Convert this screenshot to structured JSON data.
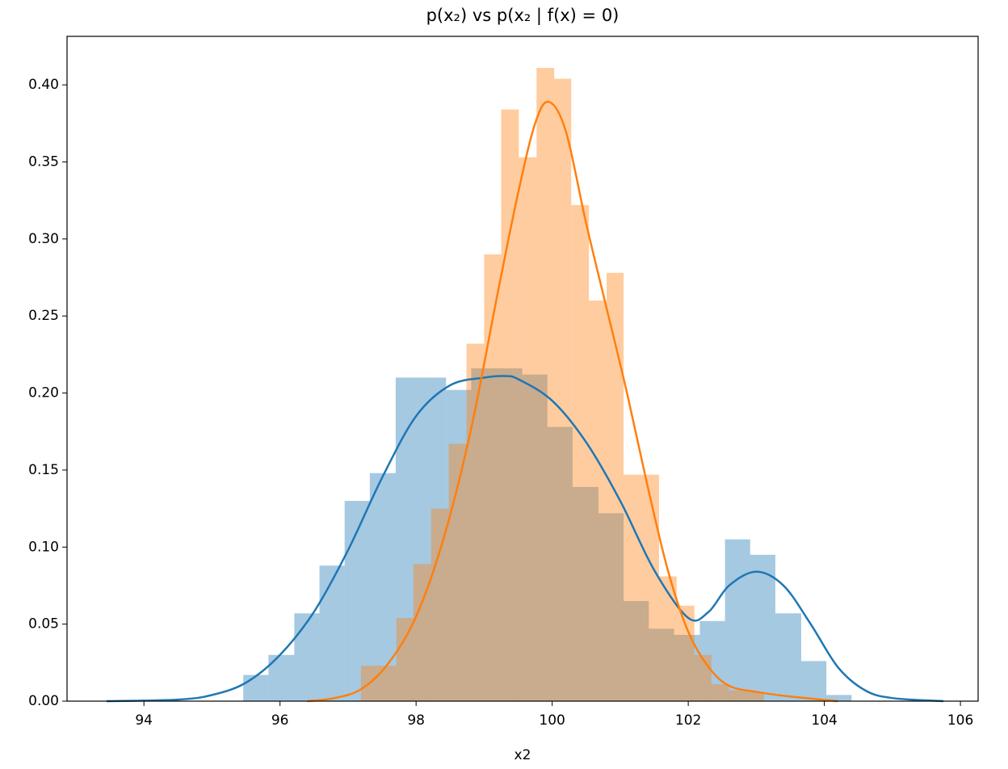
{
  "chart_data": {
    "type": "histogram",
    "title": "p(x₂) vs p(x₂ | f(x) = 0)",
    "x_label": "x2",
    "xlim": [
      92.87,
      106.26
    ],
    "ylim": [
      0,
      0.4315
    ],
    "xticks": [
      94,
      96,
      98,
      100,
      102,
      104,
      106
    ],
    "yticks": [
      {
        "value": 0,
        "label": "0.00"
      },
      {
        "value": 0.05,
        "label": "0.05"
      },
      {
        "value": 0.1,
        "label": "0.10"
      },
      {
        "value": 0.15,
        "label": "0.15"
      },
      {
        "value": 0.2,
        "label": "0.20"
      },
      {
        "value": 0.25,
        "label": "0.25"
      },
      {
        "value": 0.3,
        "label": "0.30"
      },
      {
        "value": 0.35,
        "label": "0.35"
      },
      {
        "value": 0.4,
        "label": "0.40"
      }
    ],
    "series": [
      {
        "color": "#1f77b4",
        "bins": [
          95.46,
          95.83,
          96.21,
          96.58,
          96.95,
          97.32,
          97.7,
          98.07,
          98.44,
          98.81,
          99.19,
          99.56,
          99.93,
          100.3,
          100.68,
          101.05,
          101.42,
          101.79,
          102.17,
          102.54,
          102.91,
          103.28,
          103.66,
          104.03,
          104.4
        ],
        "values": [
          0.017,
          0.03,
          0.057,
          0.088,
          0.13,
          0.148,
          0.21,
          0.21,
          0.202,
          0.216,
          0.216,
          0.212,
          0.178,
          0.139,
          0.122,
          0.065,
          0.047,
          0.043,
          0.052,
          0.105,
          0.095,
          0.057,
          0.026,
          0.004
        ],
        "kde": {
          "x": [
            93.45,
            94.5,
            95.0,
            95.5,
            96.0,
            96.5,
            97.0,
            97.5,
            98.0,
            98.5,
            99.0,
            99.3,
            99.5,
            100.0,
            100.5,
            101.0,
            101.5,
            102.0,
            102.3,
            102.6,
            103.0,
            103.4,
            103.8,
            104.2,
            104.6,
            105.0,
            105.75
          ],
          "y": [
            0.0,
            0.001,
            0.004,
            0.012,
            0.03,
            0.058,
            0.098,
            0.145,
            0.185,
            0.205,
            0.21,
            0.211,
            0.209,
            0.195,
            0.168,
            0.13,
            0.085,
            0.054,
            0.058,
            0.075,
            0.084,
            0.075,
            0.05,
            0.022,
            0.007,
            0.002,
            0.0
          ]
        }
      },
      {
        "color": "#ff7f0e",
        "bins": [
          97.19,
          97.45,
          97.71,
          97.96,
          98.22,
          98.48,
          98.74,
          99.0,
          99.25,
          99.51,
          99.77,
          100.03,
          100.28,
          100.54,
          100.8,
          101.05,
          101.31,
          101.57,
          101.83,
          102.09,
          102.34,
          102.6,
          102.86,
          103.11
        ],
        "values": [
          0.023,
          0.023,
          0.054,
          0.089,
          0.125,
          0.167,
          0.232,
          0.29,
          0.384,
          0.353,
          0.411,
          0.404,
          0.322,
          0.26,
          0.278,
          0.147,
          0.147,
          0.081,
          0.062,
          0.03,
          0.011,
          0.007,
          0.006
        ],
        "kde": {
          "x": [
            96.4,
            96.8,
            97.2,
            97.6,
            98.0,
            98.4,
            98.8,
            99.2,
            99.5,
            99.75,
            99.95,
            100.2,
            100.5,
            100.8,
            101.1,
            101.4,
            101.7,
            102.0,
            102.3,
            102.6,
            103.0,
            103.5,
            104.2
          ],
          "y": [
            0.0,
            0.002,
            0.008,
            0.025,
            0.055,
            0.105,
            0.175,
            0.265,
            0.33,
            0.375,
            0.389,
            0.37,
            0.31,
            0.255,
            0.2,
            0.14,
            0.085,
            0.045,
            0.022,
            0.01,
            0.006,
            0.003,
            0.0
          ]
        }
      }
    ]
  }
}
